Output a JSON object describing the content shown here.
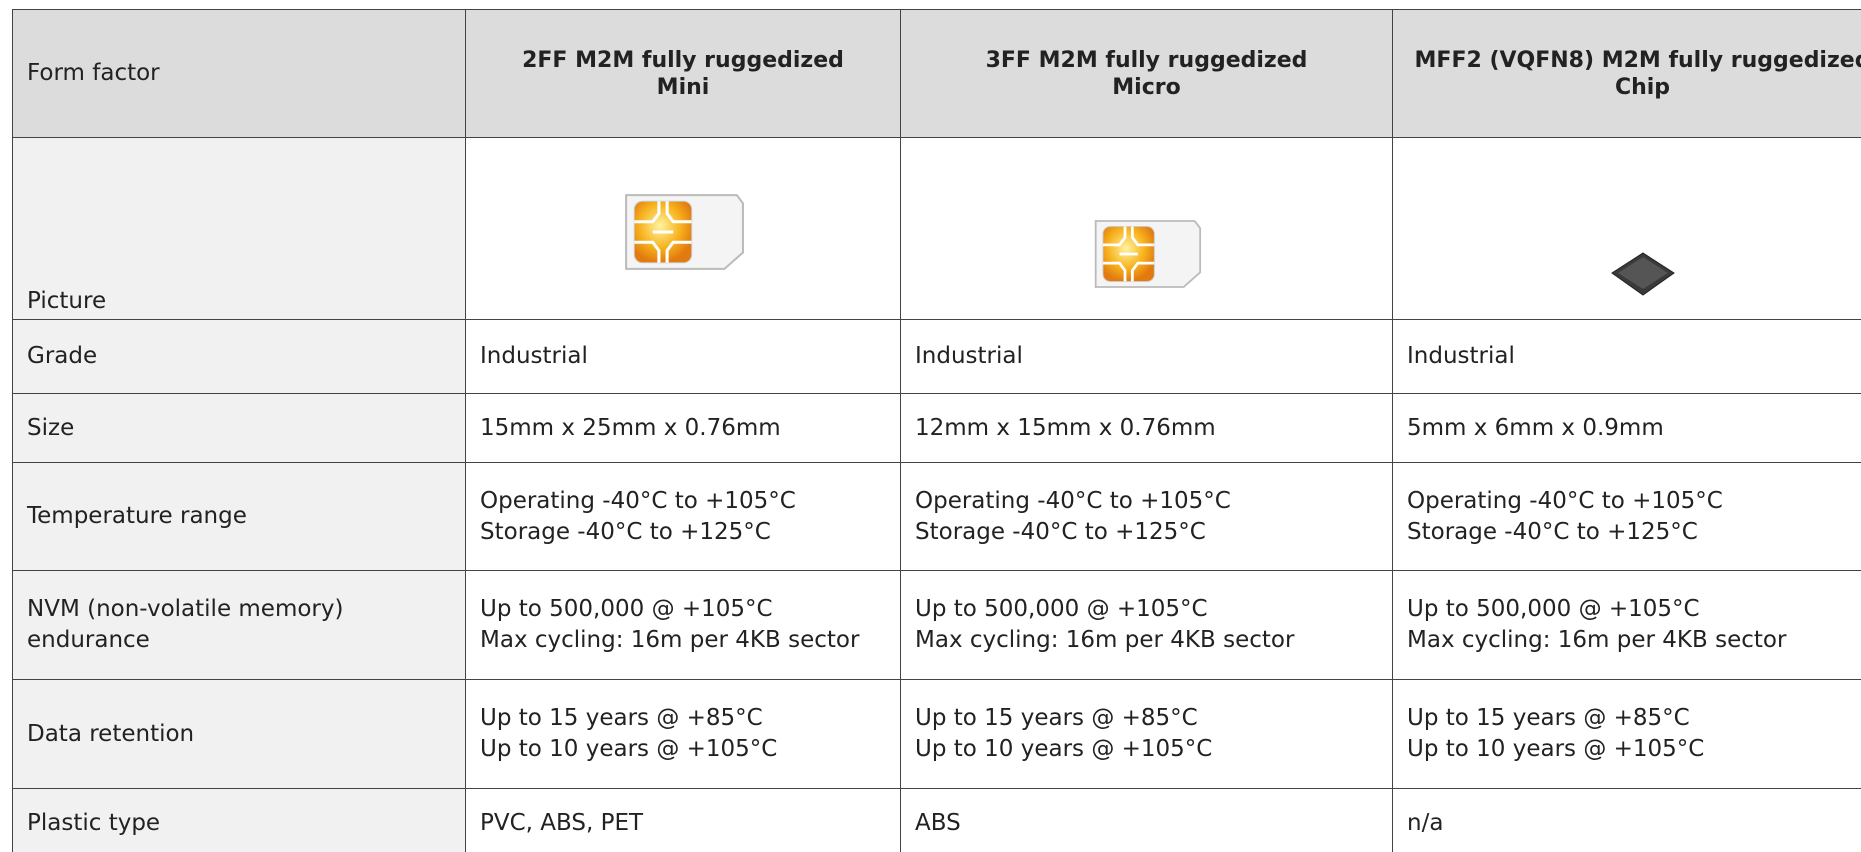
{
  "table": {
    "header": [
      [
        "Form factor"
      ],
      [
        "2FF M2M fully ruggedized",
        "Mini"
      ],
      [
        "3FF M2M fully ruggedized",
        "Micro"
      ],
      [
        "MFF2 (VQFN8) M2M fully ruggedized",
        "Chip"
      ]
    ],
    "picture_label": "Picture",
    "rows": [
      {
        "label": [
          "Grade"
        ],
        "cells": [
          [
            "Industrial"
          ],
          [
            "Industrial"
          ],
          [
            "Industrial"
          ]
        ]
      },
      {
        "label": [
          "Size"
        ],
        "cells": [
          [
            "15mm x 25mm x 0.76mm"
          ],
          [
            "12mm x 15mm x 0.76mm"
          ],
          [
            "5mm x 6mm x 0.9mm"
          ]
        ]
      },
      {
        "label": [
          "Temperature range"
        ],
        "cells": [
          [
            "Operating -40°C to +105°C",
            "Storage -40°C to +125°C"
          ],
          [
            "Operating -40°C to +105°C",
            "Storage -40°C to +125°C"
          ],
          [
            "Operating -40°C to +105°C",
            "Storage -40°C to +125°C"
          ]
        ]
      },
      {
        "label": [
          "NVM (non-volatile memory) endurance"
        ],
        "cells": [
          [
            "Up to 500,000 @ +105°C",
            "Max cycling: 16m per 4KB sector"
          ],
          [
            "Up to 500,000 @ +105°C",
            "Max cycling: 16m per 4KB sector"
          ],
          [
            "Up to 500,000 @ +105°C",
            "Max cycling: 16m per 4KB sector"
          ]
        ]
      },
      {
        "label": [
          "Data retention"
        ],
        "cells": [
          [
            "Up to 15 years @ +85°C",
            "Up to 10 years @ +105°C"
          ],
          [
            "Up to 15 years @ +85°C",
            "Up to 10 years @ +105°C"
          ],
          [
            "Up to 15 years @ +85°C",
            "Up to 10 years @ +105°C"
          ]
        ]
      },
      {
        "label": [
          "Plastic type"
        ],
        "cells": [
          [
            "PVC, ABS, PET"
          ],
          [
            "ABS"
          ],
          [
            "n/a"
          ]
        ]
      }
    ]
  }
}
